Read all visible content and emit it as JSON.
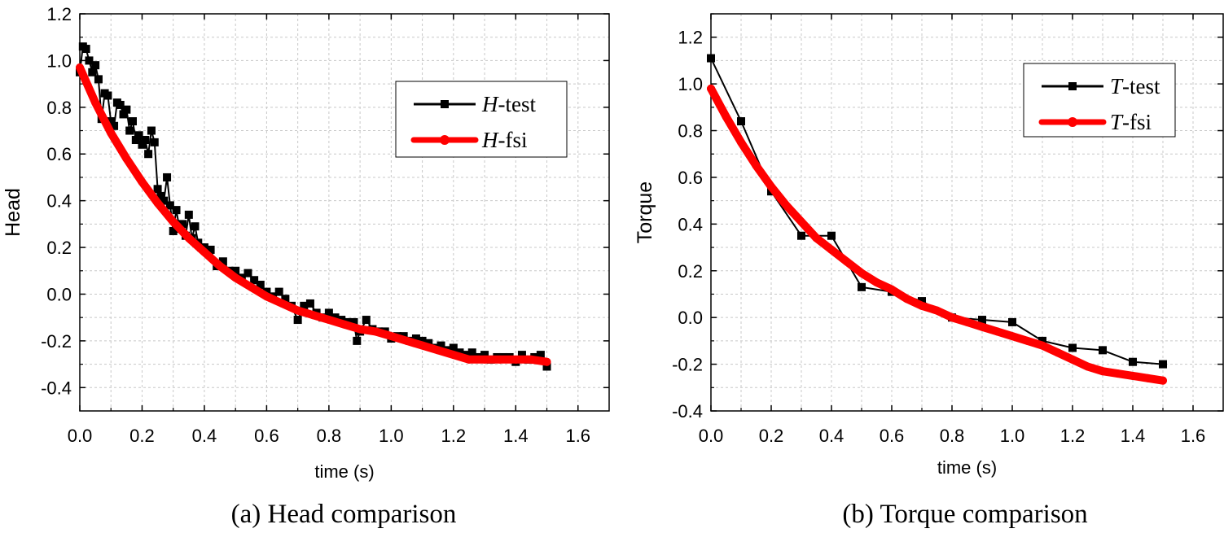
{
  "figure": {
    "caption_a": "(a) Head comparison",
    "caption_b": "(b) Torque comparison"
  },
  "chart_data": [
    {
      "type": "line",
      "id": "head",
      "xlabel": "time (s)",
      "ylabel": "Head",
      "xlim": [
        0,
        1.7
      ],
      "ylim": [
        -0.5,
        1.2
      ],
      "xticks": [
        0.0,
        0.2,
        0.4,
        0.6,
        0.8,
        1.0,
        1.2,
        1.4,
        1.6
      ],
      "yticks": [
        -0.4,
        -0.2,
        0.0,
        0.2,
        0.4,
        0.6,
        0.8,
        1.0,
        1.2
      ],
      "xtick_labels": [
        "0.0",
        "0.2",
        "0.4",
        "0.6",
        "0.8",
        "1.0",
        "1.2",
        "1.4",
        "1.6"
      ],
      "ytick_labels": [
        "-0.4",
        "-0.2",
        "0.0",
        "0.2",
        "0.4",
        "0.6",
        "0.8",
        "1.0",
        "1.2"
      ],
      "grid": true,
      "legend_position": "top-right",
      "series": [
        {
          "name_var": "H",
          "name_suffix": "-test",
          "color": "#000000",
          "marker": "square",
          "x": [
            0.0,
            0.01,
            0.02,
            0.03,
            0.04,
            0.05,
            0.06,
            0.07,
            0.08,
            0.09,
            0.1,
            0.11,
            0.12,
            0.13,
            0.14,
            0.15,
            0.16,
            0.17,
            0.18,
            0.19,
            0.2,
            0.21,
            0.22,
            0.23,
            0.24,
            0.25,
            0.26,
            0.27,
            0.28,
            0.29,
            0.3,
            0.31,
            0.32,
            0.33,
            0.34,
            0.35,
            0.36,
            0.37,
            0.38,
            0.39,
            0.4,
            0.42,
            0.44,
            0.46,
            0.48,
            0.5,
            0.52,
            0.54,
            0.56,
            0.58,
            0.6,
            0.62,
            0.64,
            0.66,
            0.68,
            0.7,
            0.72,
            0.74,
            0.76,
            0.78,
            0.8,
            0.82,
            0.84,
            0.86,
            0.88,
            0.89,
            0.9,
            0.92,
            0.94,
            0.96,
            0.98,
            1.0,
            1.02,
            1.04,
            1.06,
            1.08,
            1.1,
            1.12,
            1.14,
            1.16,
            1.18,
            1.2,
            1.22,
            1.24,
            1.26,
            1.28,
            1.3,
            1.32,
            1.34,
            1.36,
            1.38,
            1.4,
            1.42,
            1.44,
            1.46,
            1.48,
            1.5
          ],
          "values": [
            0.95,
            1.06,
            1.05,
            1.0,
            0.95,
            0.98,
            0.92,
            0.75,
            0.86,
            0.85,
            0.74,
            0.72,
            0.82,
            0.81,
            0.77,
            0.79,
            0.7,
            0.74,
            0.66,
            0.68,
            0.64,
            0.66,
            0.6,
            0.7,
            0.65,
            0.45,
            0.42,
            0.4,
            0.5,
            0.38,
            0.27,
            0.36,
            0.28,
            0.3,
            0.25,
            0.34,
            0.24,
            0.29,
            0.22,
            0.2,
            0.2,
            0.19,
            0.12,
            0.14,
            0.1,
            0.1,
            0.07,
            0.09,
            0.06,
            0.04,
            0.01,
            -0.01,
            0.01,
            -0.02,
            -0.05,
            -0.11,
            -0.05,
            -0.04,
            -0.08,
            -0.1,
            -0.08,
            -0.1,
            -0.11,
            -0.12,
            -0.12,
            -0.2,
            -0.16,
            -0.11,
            -0.15,
            -0.16,
            -0.16,
            -0.19,
            -0.18,
            -0.18,
            -0.2,
            -0.19,
            -0.2,
            -0.21,
            -0.23,
            -0.22,
            -0.24,
            -0.23,
            -0.25,
            -0.26,
            -0.25,
            -0.27,
            -0.26,
            -0.28,
            -0.27,
            -0.27,
            -0.27,
            -0.29,
            -0.26,
            -0.28,
            -0.27,
            -0.26,
            -0.31
          ]
        },
        {
          "name_var": "H",
          "name_suffix": "-fsi",
          "color": "#ff0000",
          "marker": "circle",
          "x": [
            0.0,
            0.05,
            0.1,
            0.15,
            0.2,
            0.25,
            0.3,
            0.35,
            0.4,
            0.45,
            0.5,
            0.55,
            0.6,
            0.65,
            0.7,
            0.75,
            0.8,
            0.85,
            0.9,
            0.95,
            1.0,
            1.05,
            1.1,
            1.15,
            1.2,
            1.25,
            1.3,
            1.35,
            1.4,
            1.45,
            1.5
          ],
          "values": [
            0.97,
            0.82,
            0.69,
            0.58,
            0.48,
            0.39,
            0.31,
            0.24,
            0.18,
            0.12,
            0.07,
            0.03,
            -0.01,
            -0.04,
            -0.07,
            -0.09,
            -0.11,
            -0.13,
            -0.15,
            -0.16,
            -0.18,
            -0.2,
            -0.22,
            -0.24,
            -0.26,
            -0.28,
            -0.28,
            -0.28,
            -0.28,
            -0.28,
            -0.29
          ]
        }
      ]
    },
    {
      "type": "line",
      "id": "torque",
      "xlabel": "time (s)",
      "ylabel": "Torque",
      "xlim": [
        0,
        1.7
      ],
      "ylim": [
        -0.4,
        1.3
      ],
      "xticks": [
        0.0,
        0.2,
        0.4,
        0.6,
        0.8,
        1.0,
        1.2,
        1.4,
        1.6
      ],
      "yticks": [
        -0.4,
        -0.2,
        0.0,
        0.2,
        0.4,
        0.6,
        0.8,
        1.0,
        1.2
      ],
      "xtick_labels": [
        "0.0",
        "0.2",
        "0.4",
        "0.6",
        "0.8",
        "1.0",
        "1.2",
        "1.4",
        "1.6"
      ],
      "ytick_labels": [
        "-0.4",
        "-0.2",
        "0.0",
        "0.2",
        "0.4",
        "0.6",
        "0.8",
        "1.0",
        "1.2"
      ],
      "grid": true,
      "legend_position": "top-right",
      "series": [
        {
          "name_var": "T",
          "name_suffix": "-test",
          "color": "#000000",
          "marker": "square",
          "x": [
            0.0,
            0.1,
            0.2,
            0.3,
            0.4,
            0.5,
            0.6,
            0.7,
            0.8,
            0.9,
            1.0,
            1.1,
            1.2,
            1.3,
            1.4,
            1.5
          ],
          "values": [
            1.11,
            0.84,
            0.54,
            0.35,
            0.35,
            0.13,
            0.11,
            0.07,
            0.0,
            -0.01,
            -0.02,
            -0.1,
            -0.13,
            -0.14,
            -0.19,
            -0.2
          ]
        },
        {
          "name_var": "T",
          "name_suffix": "-fsi",
          "color": "#ff0000",
          "marker": "circle",
          "x": [
            0.0,
            0.05,
            0.1,
            0.15,
            0.2,
            0.25,
            0.3,
            0.35,
            0.4,
            0.45,
            0.5,
            0.55,
            0.6,
            0.65,
            0.7,
            0.75,
            0.8,
            0.85,
            0.9,
            0.95,
            1.0,
            1.05,
            1.1,
            1.15,
            1.2,
            1.25,
            1.3,
            1.35,
            1.4,
            1.45,
            1.5
          ],
          "values": [
            0.98,
            0.86,
            0.75,
            0.65,
            0.56,
            0.48,
            0.41,
            0.34,
            0.29,
            0.24,
            0.19,
            0.15,
            0.12,
            0.08,
            0.05,
            0.03,
            0.0,
            -0.02,
            -0.04,
            -0.06,
            -0.08,
            -0.1,
            -0.12,
            -0.15,
            -0.18,
            -0.21,
            -0.23,
            -0.24,
            -0.25,
            -0.26,
            -0.27
          ]
        }
      ]
    }
  ]
}
